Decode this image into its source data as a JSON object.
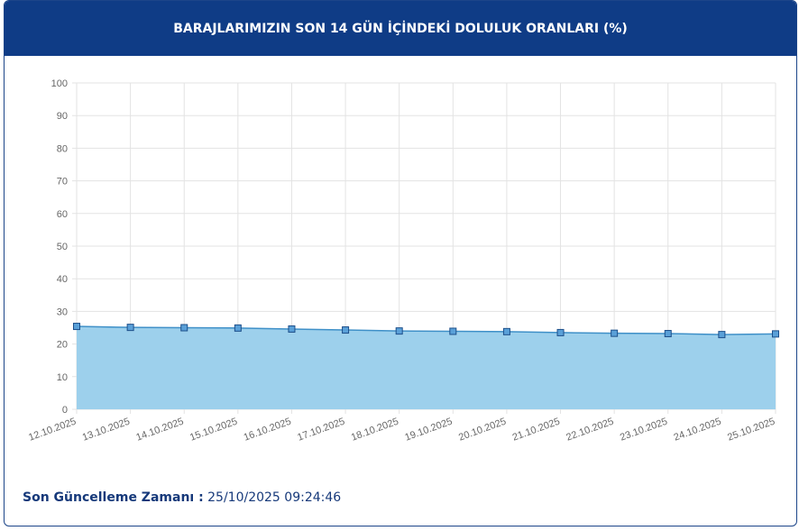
{
  "chart_data": {
    "type": "line",
    "title": "BARAJLARIMIZIN SON 14 GÜN İÇİNDEKİ DOLULUK ORANLARI (%)",
    "categories": [
      "12.10.2025",
      "13.10.2025",
      "14.10.2025",
      "15.10.2025",
      "16.10.2025",
      "17.10.2025",
      "18.10.2025",
      "19.10.2025",
      "20.10.2025",
      "21.10.2025",
      "22.10.2025",
      "23.10.2025",
      "24.10.2025",
      "25.10.2025"
    ],
    "values": [
      25.4,
      25.1,
      25.0,
      24.9,
      24.6,
      24.3,
      24.0,
      23.9,
      23.8,
      23.5,
      23.3,
      23.2,
      22.9,
      23.1
    ],
    "color": "#3f90c8",
    "fill": "#9dd0ec",
    "ylim": [
      0,
      100
    ],
    "yticks": [
      0,
      10,
      20,
      30,
      40,
      50,
      60,
      70,
      80,
      90,
      100
    ],
    "grid": true
  },
  "footer": {
    "label": "Son Güncelleme Zamanı :",
    "value": "25/10/2025 09:24:46"
  }
}
